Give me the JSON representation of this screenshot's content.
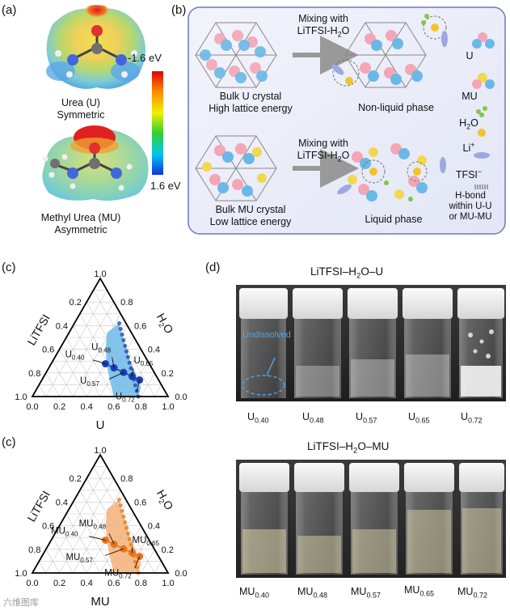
{
  "panels": {
    "a": "(a)",
    "b": "(b)",
    "c1": "(c)",
    "c2": "(c)",
    "d": "(d)"
  },
  "panel_a": {
    "urea_line1": "Urea (U)",
    "urea_line2": "Symmetric",
    "mu_line1": "Methyl Urea (MU)",
    "mu_line2": "Asymmetric",
    "scale_top": "-1.6 eV",
    "scale_bottom": "1.6 eV"
  },
  "panel_b": {
    "top_left_line1": "Bulk U crystal",
    "top_left_line2": "High lattice energy",
    "arrow_top_line1": "Mixing with",
    "arrow_top_line2": "LiTFSI-H",
    "arrow_top_sub": "2",
    "arrow_top_tail": "O",
    "top_result": "Non-liquid phase",
    "bottom_left_line1": "Bulk MU crystal",
    "bottom_left_line2": "Low lattice energy",
    "arrow_bottom_line1": "Mixing with",
    "arrow_bottom_line2": "LiTFSI-H",
    "arrow_bottom_sub": "2",
    "arrow_bottom_tail": "O",
    "bottom_result": "Liquid phase",
    "legend": {
      "u": "U",
      "mu": "MU",
      "h2o": "H",
      "h2o_sub": "2",
      "h2o_tail": "O",
      "li": "Li",
      "li_sup": "+",
      "tfsi": "TFSI",
      "tfsi_sup": "−",
      "hbond1": "H-bond",
      "hbond2": "within U-U",
      "hbond3": "or MU-MU"
    }
  },
  "panel_c": {
    "ternary_u": {
      "left_axis": "LiTFSI",
      "right_axis": "H",
      "right_axis_sub": "2",
      "right_axis_tail": "O",
      "bottom_axis": "U",
      "ticks": [
        "0.0",
        "0.2",
        "0.4",
        "0.6",
        "0.8",
        "1.0"
      ],
      "apex_top": "1.0",
      "points": [
        {
          "name": "U",
          "sub": "0.40",
          "u": 0.4
        },
        {
          "name": "U",
          "sub": "0.48",
          "u": 0.48
        },
        {
          "name": "U",
          "sub": "0.57",
          "u": 0.57
        },
        {
          "name": "U",
          "sub": "0.65",
          "u": 0.65
        },
        {
          "name": "U",
          "sub": "0.72",
          "u": 0.72
        }
      ],
      "region_color": "#6fb8e6",
      "point_color": "#1a3fb0"
    },
    "ternary_mu": {
      "left_axis": "LiTFSI",
      "right_axis": "H",
      "right_axis_sub": "2",
      "right_axis_tail": "O",
      "bottom_axis": "MU",
      "ticks": [
        "0.0",
        "0.2",
        "0.4",
        "0.6",
        "0.8",
        "1.0"
      ],
      "apex_top": "1.0",
      "points": [
        {
          "name": "MU",
          "sub": "0.40",
          "u": 0.4
        },
        {
          "name": "MU",
          "sub": "0.48",
          "u": 0.48
        },
        {
          "name": "MU",
          "sub": "0.57",
          "u": 0.57
        },
        {
          "name": "MU",
          "sub": "0.65",
          "u": 0.65
        },
        {
          "name": "MU",
          "sub": "0.72",
          "u": 0.72
        }
      ],
      "region_color": "#f3b27a",
      "point_color": "#e8741a"
    }
  },
  "panel_d": {
    "title_u": "LiTFSI–H",
    "title_u_sub": "2",
    "title_u_tail": "O–U",
    "title_mu": "LiTFSI–H",
    "title_mu_sub": "2",
    "title_mu_tail": "O–MU",
    "undissolved": "Undissolved",
    "vials_u": [
      {
        "name": "U",
        "sub": "0.40"
      },
      {
        "name": "U",
        "sub": "0.48"
      },
      {
        "name": "U",
        "sub": "0.57"
      },
      {
        "name": "U",
        "sub": "0.65"
      },
      {
        "name": "U",
        "sub": "0.72"
      }
    ],
    "vials_mu": [
      {
        "name": "MU",
        "sub": "0.40"
      },
      {
        "name": "MU",
        "sub": "0.48"
      },
      {
        "name": "MU",
        "sub": "0.57"
      },
      {
        "name": "MU",
        "sub": "0.65"
      },
      {
        "name": "MU",
        "sub": "0.72"
      }
    ]
  },
  "watermark": "六维图库"
}
